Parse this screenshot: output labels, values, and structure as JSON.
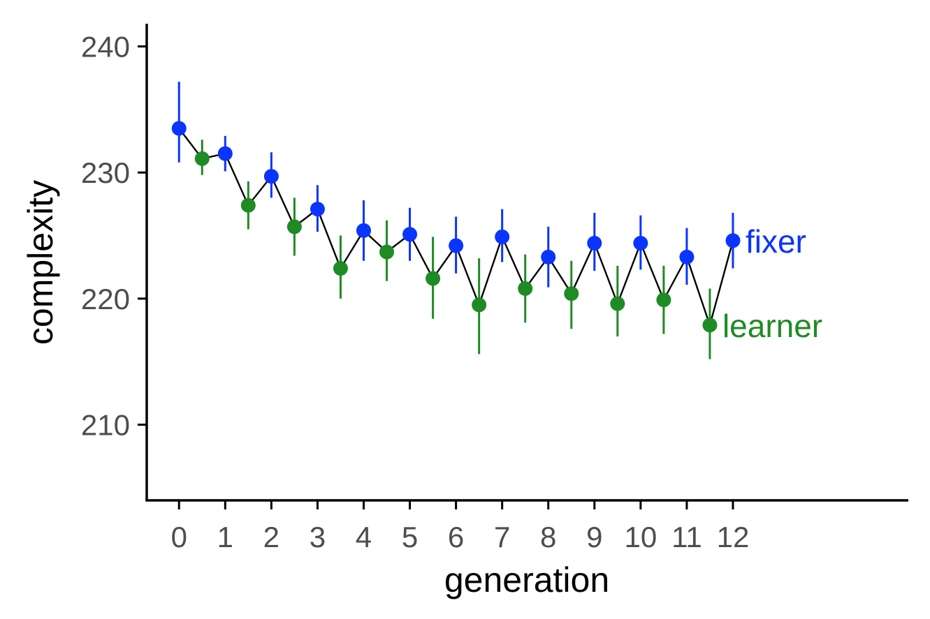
{
  "chart_data": {
    "type": "scatter",
    "xlabel": "generation",
    "ylabel": "complexity",
    "xlim": [
      -0.7,
      15.8
    ],
    "ylim": [
      204.0,
      241.8
    ],
    "xticks": [
      0,
      1,
      2,
      3,
      4,
      5,
      6,
      7,
      8,
      9,
      10,
      11,
      12
    ],
    "yticks": [
      210,
      220,
      230,
      240
    ],
    "grid": false,
    "legend": "direct-labels",
    "connecting_line_color": "#000000",
    "series": [
      {
        "name": "fixer",
        "color": "#0a34ff",
        "points": [
          {
            "x": 0,
            "y": 233.5,
            "low": 230.8,
            "high": 237.2
          },
          {
            "x": 1,
            "y": 231.5,
            "low": 230.1,
            "high": 232.9
          },
          {
            "x": 2,
            "y": 229.7,
            "low": 228.0,
            "high": 231.6
          },
          {
            "x": 3,
            "y": 227.1,
            "low": 225.3,
            "high": 229.0
          },
          {
            "x": 4,
            "y": 225.4,
            "low": 223.0,
            "high": 227.8
          },
          {
            "x": 5,
            "y": 225.1,
            "low": 223.0,
            "high": 227.2
          },
          {
            "x": 6,
            "y": 224.2,
            "low": 222.0,
            "high": 226.5
          },
          {
            "x": 7,
            "y": 224.9,
            "low": 222.9,
            "high": 227.1
          },
          {
            "x": 8,
            "y": 223.3,
            "low": 220.9,
            "high": 225.7
          },
          {
            "x": 9,
            "y": 224.4,
            "low": 222.2,
            "high": 226.8
          },
          {
            "x": 10,
            "y": 224.4,
            "low": 222.3,
            "high": 226.6
          },
          {
            "x": 11,
            "y": 223.3,
            "low": 221.1,
            "high": 225.6
          },
          {
            "x": 12,
            "y": 224.6,
            "low": 222.4,
            "high": 226.8
          }
        ]
      },
      {
        "name": "learner",
        "color": "#1f8b24",
        "points": [
          {
            "x": 0.5,
            "y": 231.1,
            "low": 229.8,
            "high": 232.6
          },
          {
            "x": 1.5,
            "y": 227.4,
            "low": 225.5,
            "high": 229.3
          },
          {
            "x": 2.5,
            "y": 225.7,
            "low": 223.4,
            "high": 228.0
          },
          {
            "x": 3.5,
            "y": 222.4,
            "low": 220.0,
            "high": 225.0
          },
          {
            "x": 4.5,
            "y": 223.7,
            "low": 221.4,
            "high": 226.2
          },
          {
            "x": 5.5,
            "y": 221.6,
            "low": 218.4,
            "high": 224.9
          },
          {
            "x": 6.5,
            "y": 219.5,
            "low": 215.6,
            "high": 223.2
          },
          {
            "x": 7.5,
            "y": 220.8,
            "low": 218.1,
            "high": 223.5
          },
          {
            "x": 8.5,
            "y": 220.4,
            "low": 217.6,
            "high": 223.0
          },
          {
            "x": 9.5,
            "y": 219.6,
            "low": 217.0,
            "high": 222.6
          },
          {
            "x": 10.5,
            "y": 219.9,
            "low": 217.2,
            "high": 222.6
          },
          {
            "x": 11.5,
            "y": 217.9,
            "low": 215.2,
            "high": 220.8
          }
        ]
      }
    ]
  }
}
